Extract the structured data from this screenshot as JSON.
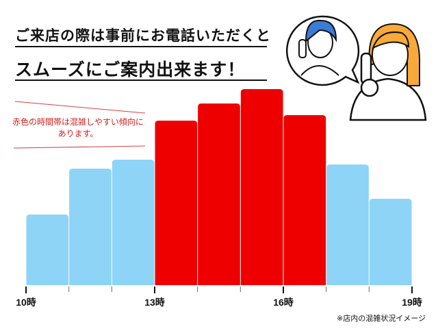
{
  "header": {
    "line1": "ご来店の際は事前にお電話いただくと",
    "line2": "スムーズにご案内出来ます！"
  },
  "annotation": {
    "line1": "赤色の時間帯は混雑しやすい傾向に",
    "line2": "あります。"
  },
  "footnote": "※店内の混雑状況イメージ",
  "colors": {
    "normal": "#8dd4f6",
    "busy": "#ee0000"
  },
  "chart_data": {
    "type": "bar",
    "title": "",
    "xlabel": "",
    "ylabel": "",
    "x_ticks": [
      "10時",
      "",
      "",
      "13時",
      "",
      "",
      "16時",
      "",
      "",
      "19時"
    ],
    "categories": [
      "10-11",
      "11-12",
      "12-13",
      "13-14",
      "14-15",
      "15-16",
      "16-17",
      "17-18",
      "18-19"
    ],
    "values": [
      103,
      170,
      183,
      240,
      265,
      286,
      248,
      176,
      126
    ],
    "busy": [
      false,
      false,
      false,
      true,
      true,
      true,
      true,
      false,
      false
    ],
    "ylim": [
      0,
      300
    ],
    "grid": false,
    "legend": "none"
  },
  "illustration": {
    "icons": [
      "woman-on-phone-speech-bubble-icon",
      "woman-on-phone-icon"
    ]
  }
}
